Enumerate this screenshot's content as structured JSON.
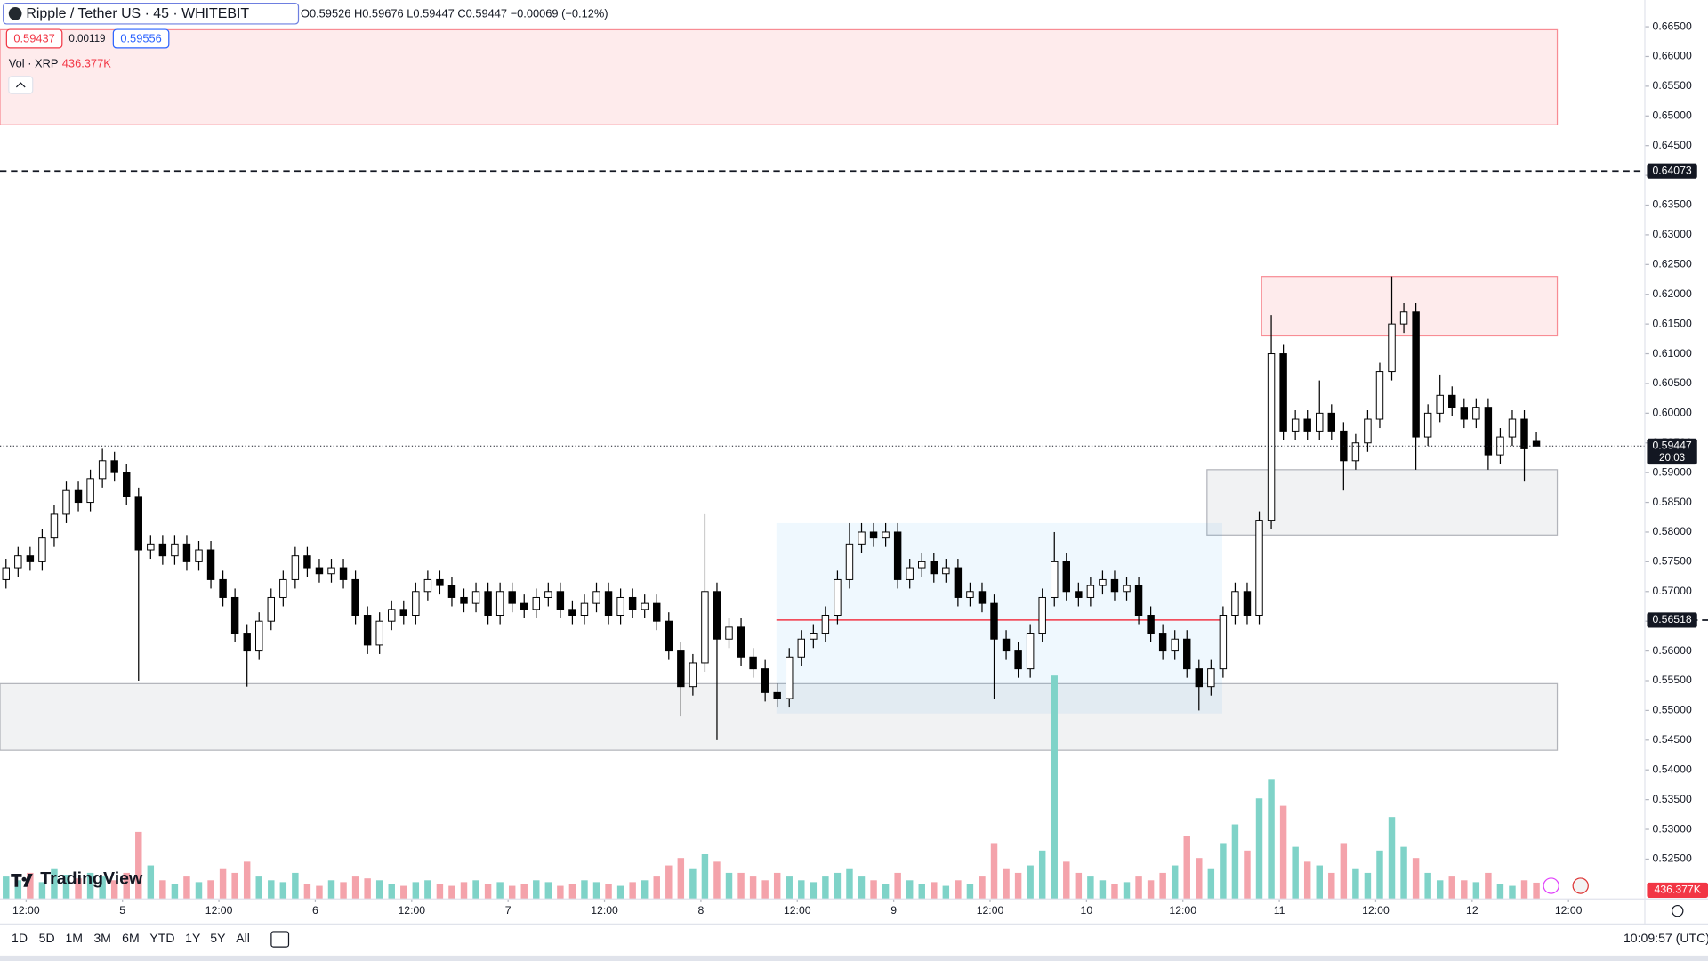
{
  "chart_data": {
    "type": "candlestick",
    "header": {
      "symbol": "Ripple / Tether US · 45 · WHITEBIT",
      "ohlc_text": "O0.59526 H0.59676 L0.59447 C0.59447 −0.00069 (−0.12%)",
      "bid": "0.59437",
      "spread": "0.00119",
      "ask": "0.59556",
      "volume_title": "Vol · XRP",
      "volume_last_label": "436.377K",
      "countdown": "20:03",
      "logo": "TradingView"
    },
    "toolbar": {
      "ranges": [
        "1D",
        "5D",
        "1M",
        "3M",
        "6M",
        "YTD",
        "1Y",
        "5Y",
        "All"
      ],
      "clock": "10:09:57 (UTC)"
    },
    "up_color": "#ffffff",
    "down_color": "#000000",
    "wick_color": "#000000",
    "volume_up_color": "#7fd3c8",
    "volume_down_color": "#f4a3ab",
    "xlim": [
      8.75,
      213.5
    ],
    "xticks": [
      {
        "value": 12,
        "label": "12:00"
      },
      {
        "value": 24,
        "label": "5"
      },
      {
        "value": 36,
        "label": "12:00"
      },
      {
        "value": 48,
        "label": "6"
      },
      {
        "value": 60,
        "label": "12:00"
      },
      {
        "value": 72,
        "label": "7"
      },
      {
        "value": 84,
        "label": "12:00"
      },
      {
        "value": 96,
        "label": "8"
      },
      {
        "value": 108,
        "label": "12:00"
      },
      {
        "value": 120,
        "label": "9"
      },
      {
        "value": 132,
        "label": "12:00"
      },
      {
        "value": 144,
        "label": "10"
      },
      {
        "value": 156,
        "label": "12:00"
      },
      {
        "value": 168,
        "label": "11"
      },
      {
        "value": 180,
        "label": "12:00"
      },
      {
        "value": 192,
        "label": "12"
      },
      {
        "value": 204,
        "label": "12:00"
      }
    ],
    "ylim": [
      0.5183,
      0.6695
    ],
    "yticks": [
      {
        "value": 0.525,
        "label": "0.52500"
      },
      {
        "value": 0.53,
        "label": "0.53000"
      },
      {
        "value": 0.535,
        "label": "0.53500"
      },
      {
        "value": 0.54,
        "label": "0.54000"
      },
      {
        "value": 0.545,
        "label": "0.54500"
      },
      {
        "value": 0.55,
        "label": "0.55000"
      },
      {
        "value": 0.555,
        "label": "0.55500"
      },
      {
        "value": 0.56,
        "label": "0.56000"
      },
      {
        "value": 0.565,
        "label": "0.56500"
      },
      {
        "value": 0.57,
        "label": "0.57000"
      },
      {
        "value": 0.575,
        "label": "0.57500"
      },
      {
        "value": 0.58,
        "label": "0.58000"
      },
      {
        "value": 0.585,
        "label": "0.58500"
      },
      {
        "value": 0.59,
        "label": "0.59000"
      },
      {
        "value": 0.595,
        "label": "0.59500"
      },
      {
        "value": 0.6,
        "label": "0.60000"
      },
      {
        "value": 0.605,
        "label": "0.60500"
      },
      {
        "value": 0.61,
        "label": "0.61000"
      },
      {
        "value": 0.615,
        "label": "0.61500"
      },
      {
        "value": 0.62,
        "label": "0.62000"
      },
      {
        "value": 0.625,
        "label": "0.62500"
      },
      {
        "value": 0.63,
        "label": "0.63000"
      },
      {
        "value": 0.635,
        "label": "0.63500"
      },
      {
        "value": 0.64,
        "label": "0.64000"
      },
      {
        "value": 0.645,
        "label": "0.64500"
      },
      {
        "value": 0.65,
        "label": "0.65000"
      },
      {
        "value": 0.655,
        "label": "0.65500"
      },
      {
        "value": 0.66,
        "label": "0.66000"
      },
      {
        "value": 0.665,
        "label": "0.66500"
      }
    ],
    "levels": [
      0.64073,
      0.56518
    ],
    "zones": [
      {
        "from": 8.75,
        "to": 202.6,
        "low": 0.6485,
        "high": 0.6645,
        "color": "#f23645"
      },
      {
        "from": 165.8,
        "to": 202.6,
        "low": 0.613,
        "high": 0.623,
        "color": "#f23645"
      },
      {
        "from": 159,
        "to": 202.6,
        "low": 0.5795,
        "high": 0.5905,
        "color": "#787b86"
      },
      {
        "from": 8.75,
        "to": 202.6,
        "low": 0.5433,
        "high": 0.5545,
        "color": "#787b86"
      }
    ],
    "profile": {
      "from": 105.4,
      "to": 160.9,
      "low": 0.5495,
      "high": 0.5815,
      "poc": 0.5652
    },
    "x": [
      9.5,
      11,
      12.5,
      14,
      15.5,
      17,
      18.5,
      20,
      21.5,
      23,
      24.5,
      26,
      27.5,
      29,
      30.5,
      32,
      33.5,
      35,
      36.5,
      38,
      39.5,
      41,
      42.5,
      44,
      45.5,
      47,
      48.5,
      50,
      51.5,
      53,
      54.5,
      56,
      57.5,
      59,
      60.5,
      62,
      63.5,
      65,
      66.5,
      68,
      69.5,
      71,
      72.5,
      74,
      75.5,
      77,
      78.5,
      80,
      81.5,
      83,
      84.5,
      86,
      87.5,
      89,
      90.5,
      92,
      93.5,
      95,
      96.5,
      98,
      99.5,
      101,
      102.5,
      104,
      105.5,
      107,
      108.5,
      110,
      111.5,
      113,
      114.5,
      116,
      117.5,
      119,
      120.5,
      122,
      123.5,
      125,
      126.5,
      128,
      129.5,
      131,
      132.5,
      134,
      135.5,
      137,
      138.5,
      140,
      141.5,
      143,
      144.5,
      146,
      147.5,
      149,
      150.5,
      152,
      153.5,
      155,
      156.5,
      158,
      159.5,
      161,
      162.5,
      164,
      165.5,
      167,
      168.5,
      170,
      171.5,
      173,
      174.5,
      176,
      177.5,
      179,
      180.5,
      182,
      183.5,
      185,
      186.5,
      188,
      189.5,
      191,
      192.5,
      194,
      195.5,
      197,
      198.5,
      200
    ],
    "ohlc": [
      [
        0.572,
        0.5755,
        0.5705,
        0.574
      ],
      [
        0.574,
        0.5775,
        0.5725,
        0.576
      ],
      [
        0.576,
        0.5775,
        0.5735,
        0.575
      ],
      [
        0.575,
        0.5805,
        0.5735,
        0.579
      ],
      [
        0.579,
        0.5845,
        0.5775,
        0.583
      ],
      [
        0.583,
        0.5885,
        0.5815,
        0.587
      ],
      [
        0.587,
        0.5885,
        0.5835,
        0.585
      ],
      [
        0.585,
        0.5905,
        0.5835,
        0.589
      ],
      [
        0.589,
        0.594,
        0.5875,
        0.592
      ],
      [
        0.592,
        0.5935,
        0.5885,
        0.59
      ],
      [
        0.59,
        0.5915,
        0.5845,
        0.586
      ],
      [
        0.586,
        0.5875,
        0.555,
        0.577
      ],
      [
        0.577,
        0.5795,
        0.5755,
        0.578
      ],
      [
        0.578,
        0.5795,
        0.5745,
        0.576
      ],
      [
        0.576,
        0.5795,
        0.5745,
        0.578
      ],
      [
        0.578,
        0.5795,
        0.5735,
        0.575
      ],
      [
        0.575,
        0.5785,
        0.5735,
        0.577
      ],
      [
        0.577,
        0.5785,
        0.5705,
        0.572
      ],
      [
        0.572,
        0.5735,
        0.5675,
        0.569
      ],
      [
        0.569,
        0.5705,
        0.5615,
        0.563
      ],
      [
        0.563,
        0.5645,
        0.554,
        0.56
      ],
      [
        0.56,
        0.5665,
        0.5585,
        0.565
      ],
      [
        0.565,
        0.5705,
        0.5635,
        0.569
      ],
      [
        0.569,
        0.5735,
        0.5675,
        0.572
      ],
      [
        0.572,
        0.5775,
        0.5705,
        0.576
      ],
      [
        0.576,
        0.5775,
        0.5725,
        0.574
      ],
      [
        0.574,
        0.5755,
        0.5715,
        0.573
      ],
      [
        0.573,
        0.5755,
        0.5715,
        0.574
      ],
      [
        0.574,
        0.5755,
        0.5705,
        0.572
      ],
      [
        0.572,
        0.5735,
        0.5645,
        0.566
      ],
      [
        0.566,
        0.5675,
        0.5595,
        0.561
      ],
      [
        0.561,
        0.5665,
        0.5595,
        0.565
      ],
      [
        0.565,
        0.5685,
        0.5635,
        0.567
      ],
      [
        0.567,
        0.5685,
        0.5645,
        0.566
      ],
      [
        0.566,
        0.5715,
        0.5645,
        0.57
      ],
      [
        0.57,
        0.5735,
        0.5685,
        0.572
      ],
      [
        0.572,
        0.5735,
        0.5695,
        0.571
      ],
      [
        0.571,
        0.5725,
        0.5675,
        0.569
      ],
      [
        0.569,
        0.5705,
        0.5665,
        0.568
      ],
      [
        0.568,
        0.5715,
        0.5665,
        0.57
      ],
      [
        0.57,
        0.5715,
        0.5645,
        0.566
      ],
      [
        0.566,
        0.5715,
        0.5645,
        0.57
      ],
      [
        0.57,
        0.5715,
        0.5665,
        0.568
      ],
      [
        0.568,
        0.5695,
        0.5655,
        0.567
      ],
      [
        0.567,
        0.5705,
        0.5655,
        0.569
      ],
      [
        0.569,
        0.5715,
        0.5675,
        0.57
      ],
      [
        0.57,
        0.5715,
        0.5655,
        0.567
      ],
      [
        0.567,
        0.5685,
        0.5645,
        0.566
      ],
      [
        0.566,
        0.5695,
        0.5645,
        0.568
      ],
      [
        0.568,
        0.5715,
        0.5665,
        0.57
      ],
      [
        0.57,
        0.5715,
        0.5645,
        0.566
      ],
      [
        0.566,
        0.5705,
        0.5645,
        0.569
      ],
      [
        0.569,
        0.5705,
        0.5655,
        0.567
      ],
      [
        0.567,
        0.5695,
        0.5655,
        0.568
      ],
      [
        0.568,
        0.5695,
        0.5635,
        0.565
      ],
      [
        0.565,
        0.5665,
        0.5585,
        0.56
      ],
      [
        0.56,
        0.5615,
        0.549,
        0.554
      ],
      [
        0.554,
        0.5595,
        0.5525,
        0.558
      ],
      [
        0.558,
        0.583,
        0.5565,
        0.57
      ],
      [
        0.57,
        0.5715,
        0.545,
        0.562
      ],
      [
        0.562,
        0.5655,
        0.5605,
        0.564
      ],
      [
        0.564,
        0.5655,
        0.5575,
        0.559
      ],
      [
        0.559,
        0.5605,
        0.5555,
        0.557
      ],
      [
        0.557,
        0.5585,
        0.5515,
        0.553
      ],
      [
        0.553,
        0.5545,
        0.5505,
        0.552
      ],
      [
        0.552,
        0.5605,
        0.5505,
        0.559
      ],
      [
        0.559,
        0.5635,
        0.5575,
        0.562
      ],
      [
        0.562,
        0.5645,
        0.5605,
        0.563
      ],
      [
        0.563,
        0.5675,
        0.5615,
        0.566
      ],
      [
        0.566,
        0.5735,
        0.5645,
        0.572
      ],
      [
        0.572,
        0.5815,
        0.5705,
        0.578
      ],
      [
        0.578,
        0.5815,
        0.5765,
        0.58
      ],
      [
        0.58,
        0.5815,
        0.5775,
        0.579
      ],
      [
        0.579,
        0.5815,
        0.5775,
        0.58
      ],
      [
        0.58,
        0.5815,
        0.5705,
        0.572
      ],
      [
        0.572,
        0.5755,
        0.5705,
        0.574
      ],
      [
        0.574,
        0.5765,
        0.5725,
        0.575
      ],
      [
        0.575,
        0.5765,
        0.5715,
        0.573
      ],
      [
        0.573,
        0.5755,
        0.5715,
        0.574
      ],
      [
        0.574,
        0.5755,
        0.5675,
        0.569
      ],
      [
        0.569,
        0.5715,
        0.5675,
        0.57
      ],
      [
        0.57,
        0.5715,
        0.5665,
        0.568
      ],
      [
        0.568,
        0.5695,
        0.552,
        0.562
      ],
      [
        0.562,
        0.5635,
        0.5585,
        0.56
      ],
      [
        0.56,
        0.5615,
        0.5555,
        0.557
      ],
      [
        0.557,
        0.5645,
        0.5555,
        0.563
      ],
      [
        0.563,
        0.5705,
        0.5615,
        0.569
      ],
      [
        0.569,
        0.58,
        0.5675,
        0.575
      ],
      [
        0.575,
        0.5765,
        0.5685,
        0.57
      ],
      [
        0.57,
        0.5715,
        0.5675,
        0.569
      ],
      [
        0.569,
        0.5725,
        0.5675,
        0.571
      ],
      [
        0.571,
        0.5735,
        0.5695,
        0.572
      ],
      [
        0.572,
        0.5735,
        0.5685,
        0.57
      ],
      [
        0.57,
        0.5725,
        0.5685,
        0.571
      ],
      [
        0.571,
        0.5725,
        0.5645,
        0.566
      ],
      [
        0.566,
        0.5675,
        0.5615,
        0.563
      ],
      [
        0.563,
        0.5645,
        0.5585,
        0.56
      ],
      [
        0.56,
        0.5635,
        0.5585,
        0.562
      ],
      [
        0.562,
        0.5635,
        0.5555,
        0.557
      ],
      [
        0.557,
        0.5585,
        0.55,
        0.554
      ],
      [
        0.554,
        0.5585,
        0.5525,
        0.557
      ],
      [
        0.557,
        0.5675,
        0.5555,
        0.566
      ],
      [
        0.566,
        0.5715,
        0.5645,
        0.57
      ],
      [
        0.57,
        0.5715,
        0.5645,
        0.566
      ],
      [
        0.566,
        0.5835,
        0.5645,
        0.582
      ],
      [
        0.582,
        0.6165,
        0.5805,
        0.61
      ],
      [
        0.61,
        0.6115,
        0.5955,
        0.597
      ],
      [
        0.597,
        0.6005,
        0.5955,
        0.599
      ],
      [
        0.599,
        0.6005,
        0.5955,
        0.597
      ],
      [
        0.597,
        0.6055,
        0.5955,
        0.6
      ],
      [
        0.6,
        0.6015,
        0.5955,
        0.597
      ],
      [
        0.597,
        0.5985,
        0.587,
        0.592
      ],
      [
        0.592,
        0.5965,
        0.5905,
        0.595
      ],
      [
        0.595,
        0.6005,
        0.5935,
        0.599
      ],
      [
        0.599,
        0.6085,
        0.5975,
        0.607
      ],
      [
        0.607,
        0.623,
        0.6055,
        0.615
      ],
      [
        0.615,
        0.6185,
        0.6135,
        0.617
      ],
      [
        0.617,
        0.6185,
        0.5905,
        0.596
      ],
      [
        0.596,
        0.6015,
        0.5945,
        0.6
      ],
      [
        0.6,
        0.6065,
        0.5985,
        0.603
      ],
      [
        0.603,
        0.6045,
        0.5995,
        0.601
      ],
      [
        0.601,
        0.6025,
        0.5975,
        0.599
      ],
      [
        0.599,
        0.6025,
        0.5975,
        0.601
      ],
      [
        0.601,
        0.6025,
        0.5905,
        0.593
      ],
      [
        0.593,
        0.5975,
        0.5915,
        0.596
      ],
      [
        0.596,
        0.6005,
        0.5945,
        0.599
      ],
      [
        0.599,
        0.6005,
        0.5885,
        0.594
      ],
      [
        0.59526,
        0.59676,
        0.59447,
        0.59447
      ]
    ],
    "volume": [
      600000,
      500000,
      700000,
      450000,
      800000,
      650000,
      550000,
      700000,
      600000,
      500000,
      700000,
      1800000,
      900000,
      500000,
      400000,
      600000,
      450000,
      500000,
      800000,
      700000,
      1000000,
      600000,
      500000,
      450000,
      700000,
      400000,
      350000,
      500000,
      450000,
      600000,
      550000,
      500000,
      400000,
      350000,
      450000,
      500000,
      400000,
      350000,
      450000,
      500000,
      400000,
      450000,
      350000,
      400000,
      500000,
      450000,
      350000,
      400000,
      500000,
      450000,
      400000,
      350000,
      450000,
      500000,
      600000,
      900000,
      1100000,
      800000,
      1200000,
      1000000,
      700000,
      700000,
      600000,
      500000,
      700000,
      600000,
      500000,
      450000,
      600000,
      700000,
      800000,
      600000,
      500000,
      400000,
      700000,
      500000,
      400000,
      450000,
      350000,
      500000,
      400000,
      600000,
      1500000,
      800000,
      700000,
      900000,
      1300000,
      6000000,
      1000000,
      700000,
      600000,
      500000,
      400000,
      450000,
      600000,
      500000,
      700000,
      900000,
      1700000,
      1100000,
      800000,
      1500000,
      2000000,
      1300000,
      2700000,
      3200000,
      2500000,
      1400000,
      1000000,
      900000,
      700000,
      1500000,
      800000,
      700000,
      1300000,
      2200000,
      1400000,
      1100000,
      700000,
      500000,
      600000,
      500000,
      450000,
      700000,
      400000,
      350000,
      500000,
      436377
    ]
  }
}
